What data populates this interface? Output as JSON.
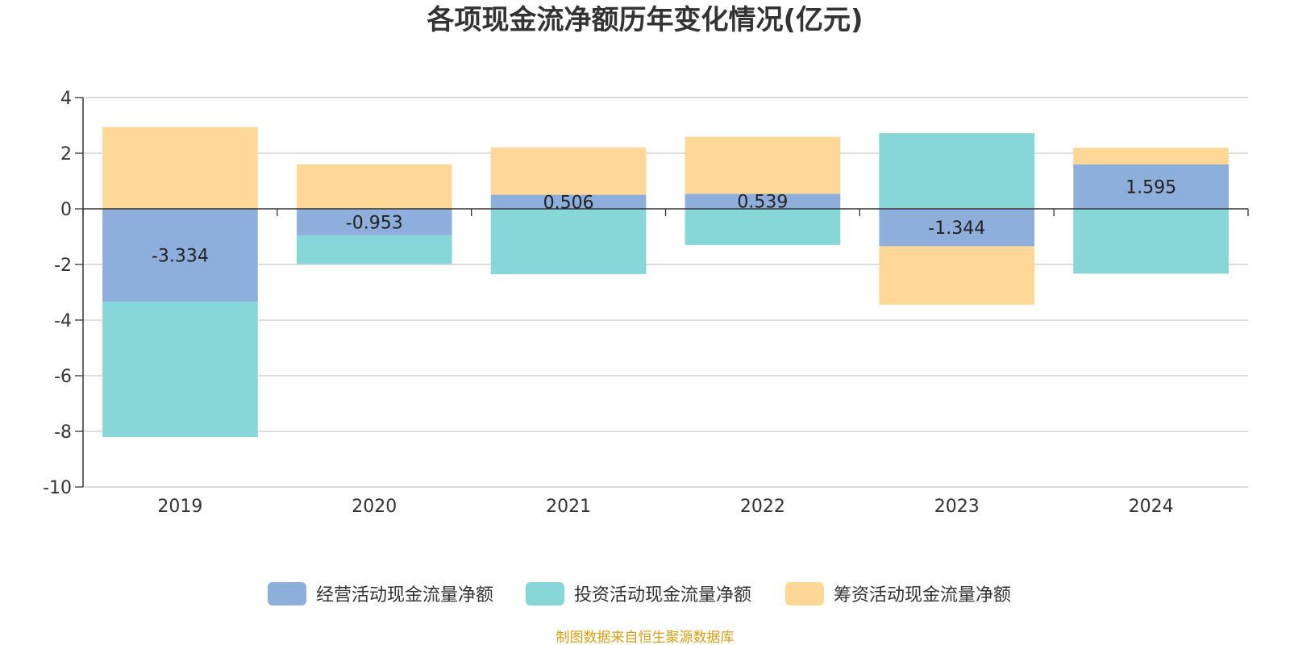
{
  "chart_data": {
    "type": "bar",
    "stacked": true,
    "title": "各项现金流净额历年变化情况(亿元)",
    "categories": [
      "2019",
      "2020",
      "2021",
      "2022",
      "2023",
      "2024"
    ],
    "ylim": [
      -10,
      4
    ],
    "yticks": [
      4,
      2,
      0,
      -2,
      -4,
      -6,
      -8,
      -10
    ],
    "grid": true,
    "legend_position": "bottom",
    "series": [
      {
        "name": "经营活动现金流量净额",
        "color": "#8eaedb",
        "values": [
          -3.334,
          -0.953,
          0.506,
          0.539,
          -1.344,
          1.595
        ]
      },
      {
        "name": "投资活动现金流量净额",
        "color": "#87d6d8",
        "values": [
          -4.87,
          -1.03,
          -2.35,
          -1.3,
          2.72,
          -2.33
        ]
      },
      {
        "name": "筹资活动现金流量净额",
        "color": "#ffd898",
        "values": [
          2.94,
          1.6,
          1.7,
          2.05,
          -2.1,
          0.6
        ]
      }
    ],
    "data_labels": [
      "-3.334",
      "-0.953",
      "0.506",
      "0.539",
      "-1.344",
      "1.595"
    ],
    "source": "制图数据来自恒生聚源数据库",
    "source_color": "#d4a017"
  }
}
